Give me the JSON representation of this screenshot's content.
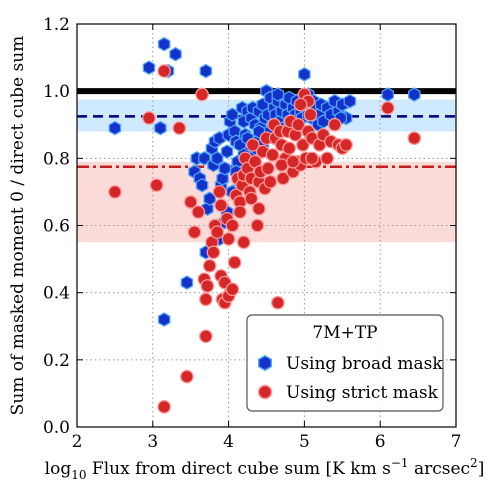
{
  "chart_data": {
    "type": "scatter",
    "xlabel_main": "log",
    "xlabel_sub": "10",
    "xlabel_rest": " Flux from direct cube sum [K km s",
    "xlabel_sup": "−1",
    "xlabel_end": " arcsec",
    "xlabel_sup2": "2",
    "xlabel_close": "]",
    "ylabel": "Sum of masked moment 0 / direct cube sum",
    "xlim": [
      2,
      7
    ],
    "ylim": [
      0.0,
      1.2
    ],
    "xticks": [
      "2",
      "3",
      "4",
      "5",
      "6",
      "7"
    ],
    "yticks": [
      "0.0",
      "0.2",
      "0.4",
      "0.6",
      "0.8",
      "1.0",
      "1.2"
    ],
    "grid": true,
    "legend": {
      "title": "7M+TP",
      "placement": "bottom-right",
      "entries": [
        "Using broad mask",
        "Using strict mask"
      ]
    },
    "reference_lines": [
      {
        "type": "solid",
        "y": 1.0,
        "color": "#000000"
      },
      {
        "type": "dashed",
        "y": 0.925,
        "color": "#000080",
        "band": [
          0.88,
          0.975
        ],
        "band_color": "#9fd3ff"
      },
      {
        "type": "dashdot",
        "y": 0.775,
        "color": "#c41e1e",
        "band": [
          0.55,
          0.79
        ],
        "band_color": "#f7b7b0"
      }
    ],
    "series": [
      {
        "name": "Using broad mask",
        "marker": "hexagon",
        "color": "#1532c8",
        "edge": "#4da3ff",
        "points": [
          [
            2.5,
            0.89
          ],
          [
            2.95,
            1.07
          ],
          [
            3.1,
            0.89
          ],
          [
            3.15,
            1.14
          ],
          [
            3.2,
            1.06
          ],
          [
            3.3,
            1.11
          ],
          [
            3.45,
            0.43
          ],
          [
            3.15,
            0.32
          ],
          [
            3.55,
            0.76
          ],
          [
            3.58,
            0.8
          ],
          [
            3.62,
            0.74
          ],
          [
            3.65,
            0.72
          ],
          [
            3.68,
            0.8
          ],
          [
            3.7,
            1.06
          ],
          [
            3.7,
            0.52
          ],
          [
            3.72,
            0.65
          ],
          [
            3.75,
            0.68
          ],
          [
            3.78,
            0.83
          ],
          [
            3.8,
            0.78
          ],
          [
            3.82,
            0.85
          ],
          [
            3.85,
            0.8
          ],
          [
            3.88,
            0.86
          ],
          [
            3.9,
            0.72
          ],
          [
            3.92,
            0.74
          ],
          [
            3.95,
            0.77
          ],
          [
            3.98,
            0.82
          ],
          [
            4.0,
            0.87
          ],
          [
            4.02,
            0.91
          ],
          [
            4.05,
            0.93
          ],
          [
            4.08,
            0.88
          ],
          [
            4.1,
            0.85
          ],
          [
            4.12,
            0.79
          ],
          [
            4.15,
            0.84
          ],
          [
            4.18,
            0.95
          ],
          [
            4.2,
            0.91
          ],
          [
            4.22,
            0.87
          ],
          [
            4.25,
            0.94
          ],
          [
            4.28,
            0.82
          ],
          [
            4.3,
            0.92
          ],
          [
            4.32,
            0.95
          ],
          [
            4.35,
            0.9
          ],
          [
            4.38,
            0.85
          ],
          [
            4.4,
            0.94
          ],
          [
            4.42,
            0.89
          ],
          [
            4.45,
            0.96
          ],
          [
            4.48,
            0.92
          ],
          [
            4.5,
            1.0
          ],
          [
            4.52,
            0.93
          ],
          [
            4.55,
            0.98
          ],
          [
            4.58,
            0.9
          ],
          [
            4.6,
            0.95
          ],
          [
            4.62,
            0.93
          ],
          [
            4.65,
            0.97
          ],
          [
            4.68,
            0.91
          ],
          [
            4.7,
            0.94
          ],
          [
            4.72,
            0.89
          ],
          [
            4.75,
            0.96
          ],
          [
            4.78,
            0.93
          ],
          [
            4.8,
            0.98
          ],
          [
            4.82,
            0.91
          ],
          [
            4.85,
            0.95
          ],
          [
            4.88,
            0.93
          ],
          [
            4.9,
            0.97
          ],
          [
            4.92,
            0.9
          ],
          [
            4.95,
            0.94
          ],
          [
            4.97,
            0.92
          ],
          [
            5.0,
            1.05
          ],
          [
            5.02,
            0.96
          ],
          [
            5.05,
            0.99
          ],
          [
            5.08,
            0.94
          ],
          [
            5.1,
            0.92
          ],
          [
            5.12,
            0.97
          ],
          [
            5.15,
            0.95
          ],
          [
            5.18,
            0.9
          ],
          [
            5.2,
            0.93
          ],
          [
            5.22,
            0.96
          ],
          [
            5.25,
            0.91
          ],
          [
            5.3,
            0.95
          ],
          [
            5.35,
            0.93
          ],
          [
            5.4,
            0.97
          ],
          [
            5.45,
            0.94
          ],
          [
            5.5,
            0.96
          ],
          [
            5.55,
            0.92
          ],
          [
            5.6,
            0.97
          ],
          [
            3.98,
            0.64
          ],
          [
            4.05,
            0.7
          ],
          [
            4.1,
            0.76
          ],
          [
            4.15,
            0.73
          ],
          [
            4.2,
            0.81
          ],
          [
            4.25,
            0.86
          ],
          [
            4.3,
            0.78
          ],
          [
            4.35,
            0.83
          ],
          [
            4.4,
            0.88
          ],
          [
            4.45,
            0.84
          ],
          [
            4.55,
            0.88
          ],
          [
            4.6,
            0.86
          ],
          [
            3.95,
            0.61
          ],
          [
            3.88,
            0.56
          ],
          [
            6.1,
            0.99
          ],
          [
            6.45,
            0.99
          ],
          [
            5.48,
            0.92
          ],
          [
            4.65,
            0.99
          ],
          [
            4.8,
            0.91
          ],
          [
            5.05,
            0.93
          ]
        ]
      },
      {
        "name": "Using strict mask",
        "marker": "circle",
        "color": "#d62728",
        "edge": "#ff9a9a",
        "points": [
          [
            2.5,
            0.7
          ],
          [
            2.95,
            0.92
          ],
          [
            3.05,
            0.72
          ],
          [
            3.15,
            1.06
          ],
          [
            3.15,
            0.06
          ],
          [
            3.35,
            0.89
          ],
          [
            3.45,
            0.15
          ],
          [
            3.5,
            0.67
          ],
          [
            3.55,
            0.58
          ],
          [
            3.6,
            0.64
          ],
          [
            3.65,
            0.99
          ],
          [
            3.68,
            0.44
          ],
          [
            3.7,
            0.27
          ],
          [
            3.7,
            0.38
          ],
          [
            3.75,
            0.48
          ],
          [
            3.78,
            0.55
          ],
          [
            3.8,
            0.52
          ],
          [
            3.82,
            0.6
          ],
          [
            3.85,
            0.58
          ],
          [
            3.88,
            0.7
          ],
          [
            3.9,
            0.66
          ],
          [
            3.92,
            0.38
          ],
          [
            3.95,
            0.37
          ],
          [
            3.98,
            0.62
          ],
          [
            4.0,
            0.56
          ],
          [
            4.02,
            0.4
          ],
          [
            4.05,
            0.6
          ],
          [
            4.08,
            0.49
          ],
          [
            4.1,
            0.69
          ],
          [
            4.12,
            0.74
          ],
          [
            4.15,
            0.67
          ],
          [
            4.18,
            0.72
          ],
          [
            4.2,
            0.75
          ],
          [
            4.22,
            0.8
          ],
          [
            4.25,
            0.77
          ],
          [
            4.28,
            0.7
          ],
          [
            4.3,
            0.74
          ],
          [
            4.32,
            0.84
          ],
          [
            4.35,
            0.79
          ],
          [
            4.38,
            0.6
          ],
          [
            4.4,
            0.73
          ],
          [
            4.42,
            0.76
          ],
          [
            4.45,
            0.82
          ],
          [
            4.48,
            0.71
          ],
          [
            4.5,
            0.86
          ],
          [
            4.52,
            0.77
          ],
          [
            4.55,
            0.73
          ],
          [
            4.58,
            0.81
          ],
          [
            4.6,
            0.9
          ],
          [
            4.62,
            0.86
          ],
          [
            4.65,
            0.37
          ],
          [
            4.68,
            0.88
          ],
          [
            4.7,
            0.84
          ],
          [
            4.72,
            0.74
          ],
          [
            4.75,
            0.8
          ],
          [
            4.78,
            0.88
          ],
          [
            4.8,
            0.83
          ],
          [
            4.82,
            0.91
          ],
          [
            4.85,
            0.76
          ],
          [
            4.88,
            0.87
          ],
          [
            4.9,
            0.79
          ],
          [
            4.92,
            0.9
          ],
          [
            4.95,
            0.78
          ],
          [
            4.98,
            0.84
          ],
          [
            5.0,
            0.99
          ],
          [
            5.02,
            0.8
          ],
          [
            5.05,
            0.88
          ],
          [
            5.08,
            0.93
          ],
          [
            5.1,
            0.86
          ],
          [
            5.15,
            0.79
          ],
          [
            5.2,
            0.84
          ],
          [
            5.25,
            0.87
          ],
          [
            5.3,
            0.8
          ],
          [
            5.35,
            0.85
          ],
          [
            5.4,
            0.9
          ],
          [
            5.45,
            0.84
          ],
          [
            5.5,
            0.83
          ],
          [
            5.55,
            0.84
          ],
          [
            4.15,
            0.64
          ],
          [
            4.2,
            0.55
          ],
          [
            4.3,
            0.68
          ],
          [
            4.4,
            0.65
          ],
          [
            3.9,
            0.45
          ],
          [
            3.95,
            0.43
          ],
          [
            4.0,
            0.39
          ],
          [
            4.05,
            0.41
          ],
          [
            3.72,
            0.42
          ],
          [
            6.1,
            0.95
          ],
          [
            6.45,
            0.86
          ],
          [
            5.05,
            0.97
          ],
          [
            4.95,
            0.96
          ],
          [
            5.1,
            0.8
          ],
          [
            4.7,
            0.78
          ],
          [
            4.85,
            0.79
          ]
        ]
      }
    ]
  }
}
